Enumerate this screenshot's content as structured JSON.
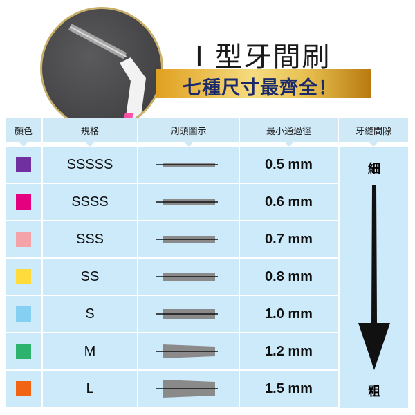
{
  "title": "I 型牙間刷",
  "banner": "七種尺寸最齊全！",
  "headers": [
    "顏色",
    "規格",
    "刷頭圖示",
    "最小通過徑",
    "牙縫間隙"
  ],
  "rows": [
    {
      "color": "#7030a0",
      "size": "SSSSS",
      "diameter": "0.5 mm"
    },
    {
      "color": "#e4007f",
      "size": "SSSS",
      "diameter": "0.6 mm"
    },
    {
      "color": "#f4a3a8",
      "size": "SSS",
      "diameter": "0.7 mm"
    },
    {
      "color": "#ffdc3c",
      "size": "SS",
      "diameter": "0.8 mm"
    },
    {
      "color": "#84cff2",
      "size": "S",
      "diameter": "1.0 mm"
    },
    {
      "color": "#2db36e",
      "size": "M",
      "diameter": "1.2 mm"
    },
    {
      "color": "#f06414",
      "size": "L",
      "diameter": "1.5 mm"
    }
  ],
  "gap": {
    "top": "細",
    "bottom": "粗",
    "icon": "arrow-down-icon"
  }
}
